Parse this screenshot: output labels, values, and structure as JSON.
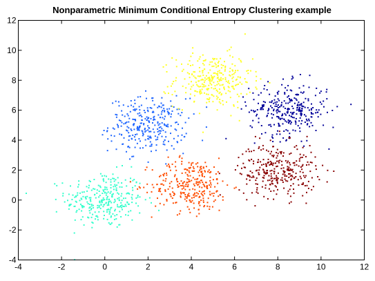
{
  "chart_data": {
    "type": "scatter",
    "title": "Nonparametric Minimum Conditional Entropy Clustering example",
    "xlabel": "",
    "ylabel": "",
    "xlim": [
      -4,
      12
    ],
    "ylim": [
      -4,
      12
    ],
    "x_ticks": [
      -4,
      -2,
      0,
      2,
      4,
      6,
      8,
      10,
      12
    ],
    "y_ticks": [
      -4,
      -2,
      0,
      2,
      4,
      6,
      8,
      10,
      12
    ],
    "grid": false,
    "legend": "none",
    "series": [
      {
        "color": "#33ffcc",
        "center": [
          0,
          0
        ],
        "spread": [
          0.9,
          0.95
        ],
        "count": 300
      },
      {
        "color": "#1f66ff",
        "center": [
          2,
          5
        ],
        "spread": [
          0.9,
          0.9
        ],
        "count": 300
      },
      {
        "color": "#ffff22",
        "center": [
          5,
          8
        ],
        "spread": [
          0.9,
          0.9
        ],
        "count": 300
      },
      {
        "color": "#ff4c00",
        "center": [
          4,
          1
        ],
        "spread": [
          0.9,
          0.9
        ],
        "count": 300
      },
      {
        "color": "#000099",
        "center": [
          8.5,
          6
        ],
        "spread": [
          0.9,
          0.9
        ],
        "count": 300
      },
      {
        "color": "#880000",
        "center": [
          8,
          2
        ],
        "spread": [
          0.9,
          0.9
        ],
        "count": 300
      }
    ]
  }
}
